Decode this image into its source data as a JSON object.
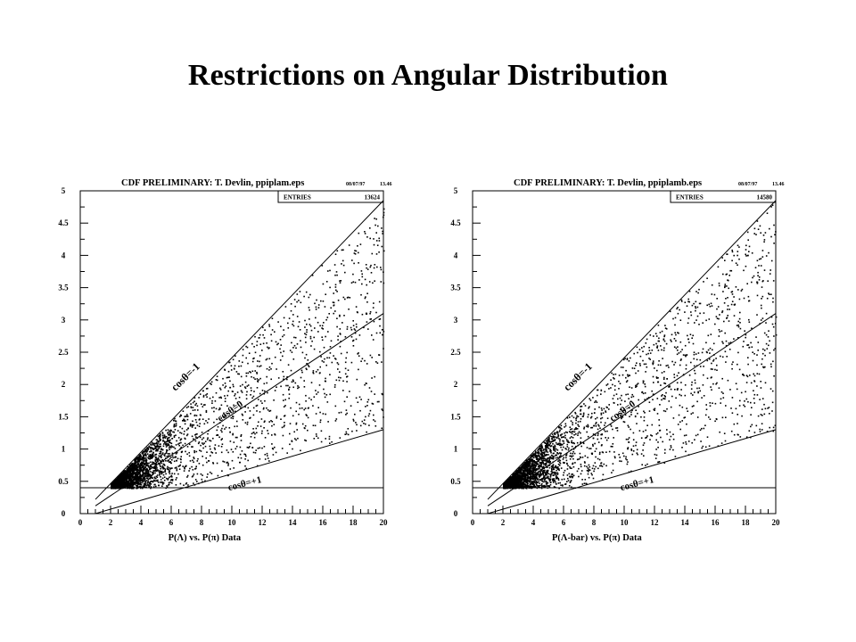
{
  "page": {
    "title": "Restrictions on Angular Distribution"
  },
  "chart_data": [
    {
      "type": "scatter",
      "header": "CDF PRELIMINARY: T. Devlin, ppiplam.eps",
      "date": "08/07/97",
      "time": "13.46",
      "stats_label": "ENTRIES",
      "entries": "13624",
      "xlabel": "P(Λ) vs. P(π) Data",
      "ylabel": "",
      "xlim": [
        0,
        20
      ],
      "ylim": [
        0,
        5
      ],
      "xticks": [
        "0",
        "2",
        "4",
        "6",
        "8",
        "10",
        "12",
        "14",
        "16",
        "18",
        "20"
      ],
      "yticks": [
        "0",
        "0.5",
        "1",
        "1.5",
        "2",
        "2.5",
        "3",
        "3.5",
        "4",
        "4.5",
        "5"
      ],
      "curves": [
        {
          "label": "cosθ=-1",
          "points": [
            [
              1,
              0.22
            ],
            [
              20,
              4.85
            ]
          ]
        },
        {
          "label": "cosθ=0",
          "points": [
            [
              1,
              0.12
            ],
            [
              20,
              3.1
            ]
          ]
        },
        {
          "label": "cosθ=+1",
          "points": [
            [
              1,
              0.0
            ],
            [
              20,
              1.3
            ]
          ]
        },
        {
          "label": "",
          "points": [
            [
              0,
              0.4
            ],
            [
              20,
              0.4
            ]
          ]
        }
      ],
      "grid": false
    },
    {
      "type": "scatter",
      "header": "CDF PRELIMINARY: T. Devlin, ppiplamb.eps",
      "date": "08/07/97",
      "time": "13.46",
      "stats_label": "ENTRIES",
      "entries": "14580",
      "xlabel": "P(Λ-bar) vs. P(π) Data",
      "ylabel": "",
      "xlim": [
        0,
        20
      ],
      "ylim": [
        0,
        5
      ],
      "xticks": [
        "0",
        "2",
        "4",
        "6",
        "8",
        "10",
        "12",
        "14",
        "16",
        "18",
        "20"
      ],
      "yticks": [
        "0",
        "0.5",
        "1",
        "1.5",
        "2",
        "2.5",
        "3",
        "3.5",
        "4",
        "4.5",
        "5"
      ],
      "curves": [
        {
          "label": "cosθ=-1",
          "points": [
            [
              1,
              0.22
            ],
            [
              20,
              4.85
            ]
          ]
        },
        {
          "label": "cosθ=0",
          "points": [
            [
              1,
              0.12
            ],
            [
              20,
              3.1
            ]
          ]
        },
        {
          "label": "cosθ=+1",
          "points": [
            [
              1,
              0.0
            ],
            [
              20,
              1.3
            ]
          ]
        },
        {
          "label": "",
          "points": [
            [
              0,
              0.4
            ],
            [
              20,
              0.4
            ]
          ]
        }
      ],
      "grid": false
    }
  ]
}
